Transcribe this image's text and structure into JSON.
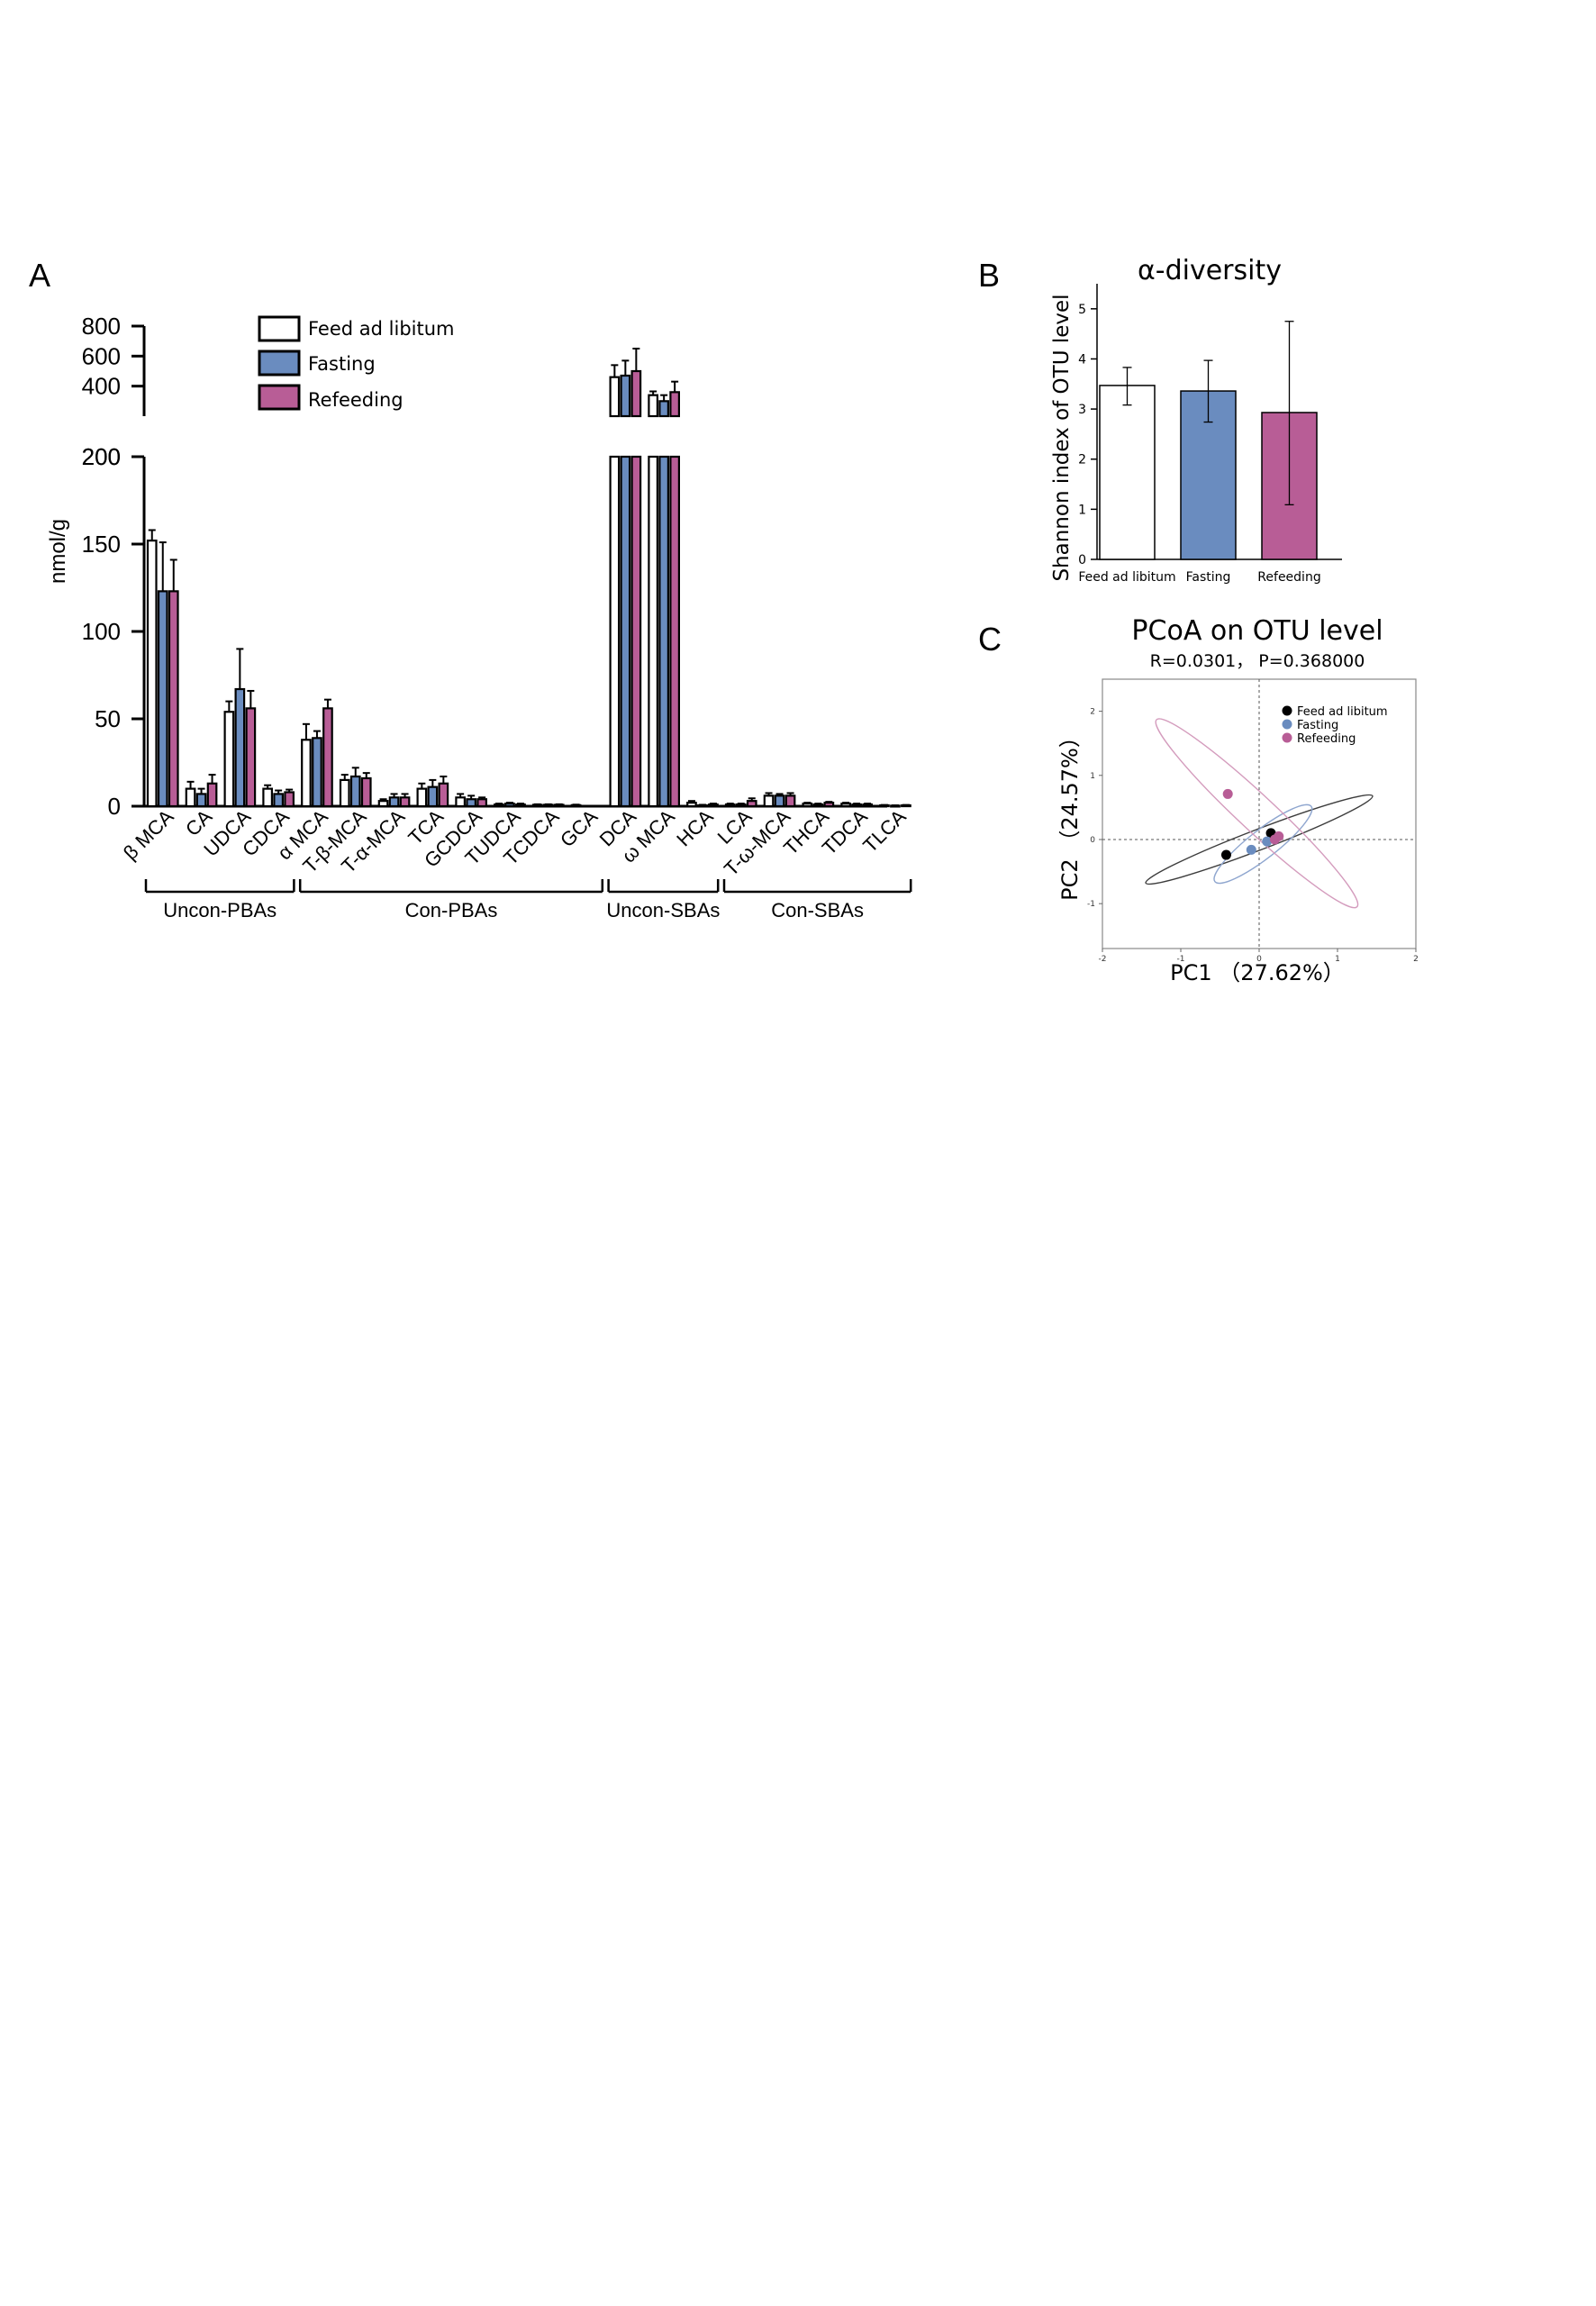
{
  "colors": {
    "feed": "#ffffff",
    "fasting": "#6a8cbf",
    "refeeding": "#b85d96",
    "axis": "#000000",
    "pcoa_ellipse_feed": "#3c3c3c",
    "pcoa_ellipse_fasting": "#8fa6cf",
    "pcoa_ellipse_refeed": "#d49cbd"
  },
  "panels": {
    "a_label": "A",
    "b_label": "B",
    "c_label": "C"
  },
  "chart_data": [
    {
      "id": "A",
      "type": "bar",
      "ylabel": "nmol/g",
      "ylim_lower": [
        0,
        200
      ],
      "ylim_upper": [
        200,
        800
      ],
      "yticks_lower": [
        "0",
        "50",
        "100",
        "150",
        "200"
      ],
      "yticks_upper": [
        "200",
        "400",
        "600",
        "800"
      ],
      "legend": [
        "Feed ad libitum",
        "Fasting",
        "Refeeding"
      ],
      "legend_position": "top-center",
      "categories": [
        "β MCA",
        "CA",
        "UDCA",
        "CDCA",
        "α MCA",
        "T-β-MCA",
        "T-α-MCA",
        "TCA",
        "GCDCA",
        "TUDCA",
        "TCDCA",
        "GCA",
        "DCA",
        "ω MCA",
        "HCA",
        "LCA",
        "T-ω-MCA",
        "THCA",
        "TDCA",
        "TLCA"
      ],
      "series": [
        {
          "name": "Feed ad libitum",
          "values": [
            152,
            10,
            54,
            10,
            38,
            15,
            3,
            10,
            5,
            1,
            0.8,
            0.6,
            460,
            340,
            2,
            1,
            6,
            1.5,
            1.5,
            0.5
          ],
          "errors": [
            6,
            4,
            6,
            2,
            9,
            3,
            1,
            3,
            2,
            0.5,
            0.3,
            0.3,
            80,
            25,
            1,
            0.5,
            1.5,
            0.5,
            0.5,
            0.2
          ]
        },
        {
          "name": "Fasting",
          "values": [
            123,
            7,
            67,
            7,
            39,
            17,
            5,
            11,
            4,
            1.5,
            0.8,
            0,
            470,
            300,
            0.5,
            1,
            6,
            1,
            1,
            0.3
          ],
          "errors": [
            28,
            3,
            23,
            2,
            4,
            5,
            2,
            4,
            2,
            0.5,
            0.3,
            0,
            100,
            40,
            0.3,
            0.5,
            1,
            0.5,
            0.5,
            0.2
          ]
        },
        {
          "name": "Refeeding",
          "values": [
            123,
            13,
            56,
            8,
            56,
            16,
            5,
            13,
            4,
            1,
            0.8,
            0,
            500,
            360,
            1,
            3,
            6,
            2,
            1,
            0.5
          ],
          "errors": [
            18,
            5,
            10,
            1.5,
            5,
            3,
            2,
            4,
            1,
            0.5,
            0.3,
            0,
            150,
            70,
            0.5,
            1.5,
            1.5,
            0.5,
            0.5,
            0.2
          ]
        }
      ],
      "groups": [
        {
          "label": "Uncon-PBAs",
          "from": 0,
          "to": 3
        },
        {
          "label": "Con-PBAs",
          "from": 4,
          "to": 11
        },
        {
          "label": "Uncon-SBAs",
          "from": 12,
          "to": 14
        },
        {
          "label": "Con-SBAs",
          "from": 15,
          "to": 19
        }
      ]
    },
    {
      "id": "B",
      "type": "bar",
      "title": "α-diversity",
      "ylabel": "Shannon index of  OTU level",
      "ylim": [
        0,
        5.5
      ],
      "yticks": [
        "0",
        "1",
        "2",
        "3",
        "4",
        "5"
      ],
      "categories": [
        "Feed ad libitum",
        "Fasting",
        "Refeeding"
      ],
      "values": [
        3.47,
        3.36,
        2.93
      ],
      "errors_low": [
        3.08,
        2.74,
        1.09
      ],
      "errors_high": [
        3.83,
        3.97,
        4.75
      ]
    },
    {
      "id": "C",
      "type": "scatter",
      "title": "PCoA on  OTU level",
      "subtitle": "R=0.0301，  P=0.368000",
      "xlabel": "PC1 （27.62%）",
      "ylabel": "PC2 （24.57%）",
      "xlim": [
        -2,
        2
      ],
      "ylim": [
        -1.7,
        2.5
      ],
      "xticks": [
        "-2",
        "-1",
        "0",
        "1",
        "2"
      ],
      "yticks": [
        "-1",
        "0",
        "1",
        "2"
      ],
      "legend": [
        "Feed ad libitum",
        "Fasting",
        "Refeeding"
      ],
      "legend_position": "top-right",
      "points": [
        {
          "group": "Feed ad libitum",
          "x": -0.42,
          "y": -0.24
        },
        {
          "group": "Feed ad libitum",
          "x": 0.15,
          "y": 0.1
        },
        {
          "group": "Fasting",
          "x": -0.1,
          "y": -0.16
        },
        {
          "group": "Fasting",
          "x": 0.1,
          "y": -0.03
        },
        {
          "group": "Refeeding",
          "x": -0.4,
          "y": 0.71
        },
        {
          "group": "Refeeding",
          "x": 0.2,
          "y": 0.0
        },
        {
          "group": "Refeeding",
          "x": 0.25,
          "y": 0.05
        }
      ],
      "ellipses": [
        {
          "group": "Feed ad libitum",
          "cx": 0.0,
          "cy": 0.0,
          "rx": 1.55,
          "ry": 0.16,
          "angle": 21
        },
        {
          "group": "Fasting",
          "cx": 0.05,
          "cy": -0.07,
          "rx": 0.78,
          "ry": 0.22,
          "angle": 38
        },
        {
          "group": "Refeeding",
          "cx": -0.03,
          "cy": 0.41,
          "rx": 1.75,
          "ry": 0.28,
          "angle": -43
        }
      ]
    }
  ]
}
